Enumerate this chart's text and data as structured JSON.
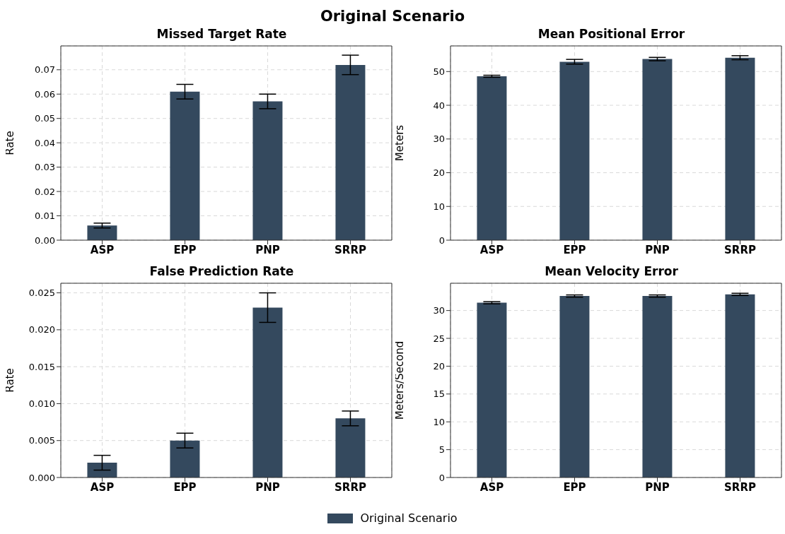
{
  "chart_data": [
    {
      "type": "bar",
      "title": "Missed Target Rate",
      "ylabel": "Rate",
      "annotations": [
        "Original Scenario"
      ],
      "categories": [
        "ASP",
        "EPP",
        "PNP",
        "SRRP"
      ],
      "series": [
        {
          "name": "Original Scenario",
          "color": "#34495e",
          "values": [
            0.006,
            0.061,
            0.057,
            0.072
          ],
          "errors": [
            0.001,
            0.003,
            0.003,
            0.004
          ]
        }
      ],
      "ylim": [
        0,
        0.0798
      ],
      "yticks": [
        {
          "value": 0,
          "label": "0.00"
        },
        0.01,
        0.02,
        0.03,
        0.04,
        0.05,
        0.06,
        0.07
      ],
      "grid": true,
      "legend": "bottom"
    },
    {
      "type": "bar",
      "title": "Mean Positional Error",
      "ylabel": "Meters",
      "categories": [
        "ASP",
        "EPP",
        "PNP",
        "SRRP"
      ],
      "series": [
        {
          "color": "#34495e",
          "values": [
            48.6,
            52.9,
            53.7,
            54.1
          ],
          "errors": [
            0.3,
            0.7,
            0.5,
            0.6
          ]
        }
      ],
      "ylim": [
        0,
        57.6
      ],
      "yticks": [
        0,
        10,
        20,
        30,
        40,
        50
      ],
      "grid": true
    },
    {
      "type": "bar",
      "title": "False Prediction Rate",
      "ylabel": "Rate",
      "categories": [
        "ASP",
        "EPP",
        "PNP",
        "SRRP"
      ],
      "series": [
        {
          "color": "#34495e",
          "values": [
            0.002,
            0.005,
            0.023,
            0.008
          ],
          "errors": [
            0.001,
            0.001,
            0.002,
            0.001
          ]
        }
      ],
      "ylim": [
        0,
        0.0263
      ],
      "yticks": [
        {
          "value": 0,
          "label": "0.000"
        },
        0.005,
        {
          "value": 0.01,
          "label": "0.010"
        },
        0.015,
        {
          "value": 0.02,
          "label": "0.020"
        },
        0.025
      ],
      "grid": true
    },
    {
      "type": "bar",
      "title": "Mean Velocity Error",
      "ylabel": "Meters/Second",
      "categories": [
        "ASP",
        "EPP",
        "PNP",
        "SRRP"
      ],
      "series": [
        {
          "color": "#34495e",
          "values": [
            31.4,
            32.6,
            32.6,
            32.9
          ],
          "errors": [
            0.2,
            0.2,
            0.2,
            0.2
          ]
        }
      ],
      "ylim": [
        0,
        34.9
      ],
      "yticks": [
        0,
        5,
        10,
        15,
        20,
        25,
        30
      ],
      "grid": true
    }
  ]
}
